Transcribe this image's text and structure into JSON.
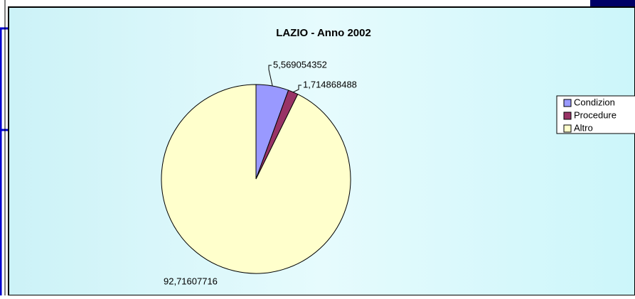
{
  "chart_data": {
    "type": "pie",
    "title": "LAZIO - Anno 2002",
    "categories": [
      "Condizion",
      "Procedure",
      "Altro"
    ],
    "values": [
      5.569054352,
      1.714868488,
      92.71607716
    ],
    "value_labels": [
      "5,569054352",
      "1,714868488",
      "92,71607716"
    ],
    "colors": [
      "#9999ff",
      "#993366",
      "#ffffcc"
    ],
    "legend": "right"
  }
}
